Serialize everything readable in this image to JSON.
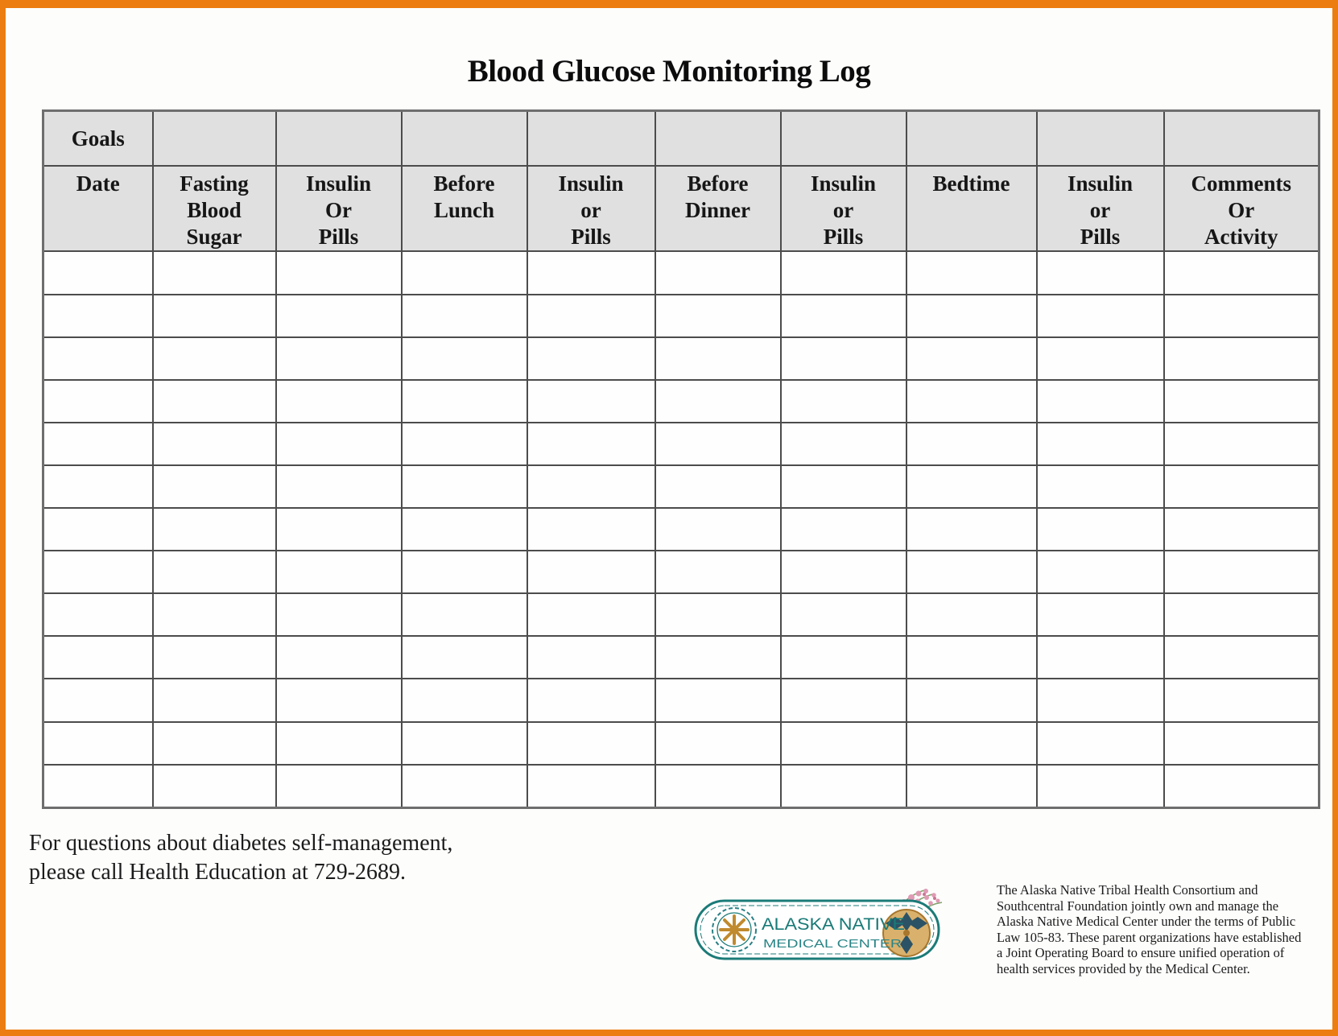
{
  "title": "Blood Glucose Monitoring Log",
  "table": {
    "goals_label": "Goals",
    "columns": [
      {
        "label": "Date"
      },
      {
        "label": "Fasting\nBlood\nSugar"
      },
      {
        "label": "Insulin\nOr\nPills"
      },
      {
        "label": "Before\nLunch"
      },
      {
        "label": "Insulin\nor\nPills"
      },
      {
        "label": "Before\nDinner"
      },
      {
        "label": "Insulin\nor\nPills"
      },
      {
        "label": "Bedtime"
      },
      {
        "label": "Insulin\nor\nPills"
      },
      {
        "label": "Comments\nOr\nActivity"
      }
    ],
    "empty_row_count": 13,
    "header_bg": "#e0e0e0",
    "border_color": "#4c4c4c"
  },
  "footer": {
    "contact_lines": [
      "For questions about diabetes self-management,",
      "please call Health Education at 729-2689."
    ],
    "disclaimer_lines": [
      "The Alaska Native Tribal Health Consortium and",
      "Southcentral Foundation jointly own and manage the",
      "Alaska Native Medical Center under the terms of Public",
      "Law 105-83.  These parent organizations have established",
      "a Joint Operating Board to ensure unified operation of",
      "health services provided by the Medical Center."
    ],
    "logo": {
      "line1": "ALASKA NATIVE",
      "line2": "MEDICAL CENTER",
      "teal": "#1b7b78",
      "gold": "#c08a2e",
      "pink": "#e09ab4"
    }
  },
  "frame_color": "#EC7D10"
}
